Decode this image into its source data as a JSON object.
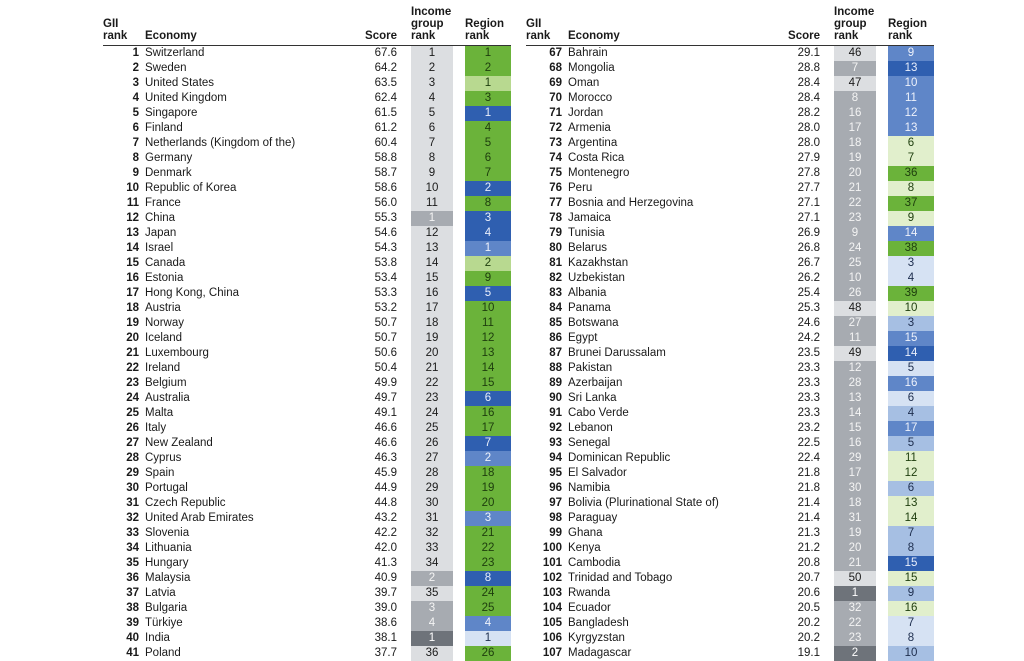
{
  "headers": {
    "gii_rank": [
      "GII",
      "rank"
    ],
    "economy": "Economy",
    "score": "Score",
    "income_group_rank": [
      "Income",
      "group",
      "rank"
    ],
    "region_rank": [
      "Region",
      "rank"
    ]
  },
  "left_rows": [
    {
      "gii": "1",
      "economy": "Switzerland",
      "score": "67.6",
      "income": "1",
      "income_shade": "light",
      "region": "1",
      "region_color": "g"
    },
    {
      "gii": "2",
      "economy": "Sweden",
      "score": "64.2",
      "income": "2",
      "income_shade": "light",
      "region": "2",
      "region_color": "g"
    },
    {
      "gii": "3",
      "economy": "United States",
      "score": "63.5",
      "income": "3",
      "income_shade": "light",
      "region": "1",
      "region_color": "lg"
    },
    {
      "gii": "4",
      "economy": "United Kingdom",
      "score": "62.4",
      "income": "4",
      "income_shade": "light",
      "region": "3",
      "region_color": "g"
    },
    {
      "gii": "5",
      "economy": "Singapore",
      "score": "61.5",
      "income": "5",
      "income_shade": "light",
      "region": "1",
      "region_color": "db"
    },
    {
      "gii": "6",
      "economy": "Finland",
      "score": "61.2",
      "income": "6",
      "income_shade": "light",
      "region": "4",
      "region_color": "g"
    },
    {
      "gii": "7",
      "economy": "Netherlands (Kingdom of the)",
      "score": "60.4",
      "income": "7",
      "income_shade": "light",
      "region": "5",
      "region_color": "g"
    },
    {
      "gii": "8",
      "economy": "Germany",
      "score": "58.8",
      "income": "8",
      "income_shade": "light",
      "region": "6",
      "region_color": "g"
    },
    {
      "gii": "9",
      "economy": "Denmark",
      "score": "58.7",
      "income": "9",
      "income_shade": "light",
      "region": "7",
      "region_color": "g"
    },
    {
      "gii": "10",
      "economy": "Republic of Korea",
      "score": "58.6",
      "income": "10",
      "income_shade": "light",
      "region": "2",
      "region_color": "db"
    },
    {
      "gii": "11",
      "economy": "France",
      "score": "56.0",
      "income": "11",
      "income_shade": "light",
      "region": "8",
      "region_color": "g"
    },
    {
      "gii": "12",
      "economy": "China",
      "score": "55.3",
      "income": "1",
      "income_shade": "mid",
      "region": "3",
      "region_color": "db"
    },
    {
      "gii": "13",
      "economy": "Japan",
      "score": "54.6",
      "income": "12",
      "income_shade": "light",
      "region": "4",
      "region_color": "db"
    },
    {
      "gii": "14",
      "economy": "Israel",
      "score": "54.3",
      "income": "13",
      "income_shade": "light",
      "region": "1",
      "region_color": "mb"
    },
    {
      "gii": "15",
      "economy": "Canada",
      "score": "53.8",
      "income": "14",
      "income_shade": "light",
      "region": "2",
      "region_color": "lg"
    },
    {
      "gii": "16",
      "economy": "Estonia",
      "score": "53.4",
      "income": "15",
      "income_shade": "light",
      "region": "9",
      "region_color": "g"
    },
    {
      "gii": "17",
      "economy": "Hong Kong, China",
      "score": "53.3",
      "income": "16",
      "income_shade": "light",
      "region": "5",
      "region_color": "db"
    },
    {
      "gii": "18",
      "economy": "Austria",
      "score": "53.2",
      "income": "17",
      "income_shade": "light",
      "region": "10",
      "region_color": "g"
    },
    {
      "gii": "19",
      "economy": "Norway",
      "score": "50.7",
      "income": "18",
      "income_shade": "light",
      "region": "11",
      "region_color": "g"
    },
    {
      "gii": "20",
      "economy": "Iceland",
      "score": "50.7",
      "income": "19",
      "income_shade": "light",
      "region": "12",
      "region_color": "g"
    },
    {
      "gii": "21",
      "economy": "Luxembourg",
      "score": "50.6",
      "income": "20",
      "income_shade": "light",
      "region": "13",
      "region_color": "g"
    },
    {
      "gii": "22",
      "economy": "Ireland",
      "score": "50.4",
      "income": "21",
      "income_shade": "light",
      "region": "14",
      "region_color": "g"
    },
    {
      "gii": "23",
      "economy": "Belgium",
      "score": "49.9",
      "income": "22",
      "income_shade": "light",
      "region": "15",
      "region_color": "g"
    },
    {
      "gii": "24",
      "economy": "Australia",
      "score": "49.7",
      "income": "23",
      "income_shade": "light",
      "region": "6",
      "region_color": "db"
    },
    {
      "gii": "25",
      "economy": "Malta",
      "score": "49.1",
      "income": "24",
      "income_shade": "light",
      "region": "16",
      "region_color": "g"
    },
    {
      "gii": "26",
      "economy": "Italy",
      "score": "46.6",
      "income": "25",
      "income_shade": "light",
      "region": "17",
      "region_color": "g"
    },
    {
      "gii": "27",
      "economy": "New Zealand",
      "score": "46.6",
      "income": "26",
      "income_shade": "light",
      "region": "7",
      "region_color": "db"
    },
    {
      "gii": "28",
      "economy": "Cyprus",
      "score": "46.3",
      "income": "27",
      "income_shade": "light",
      "region": "2",
      "region_color": "mb"
    },
    {
      "gii": "29",
      "economy": "Spain",
      "score": "45.9",
      "income": "28",
      "income_shade": "light",
      "region": "18",
      "region_color": "g"
    },
    {
      "gii": "30",
      "economy": "Portugal",
      "score": "44.9",
      "income": "29",
      "income_shade": "light",
      "region": "19",
      "region_color": "g"
    },
    {
      "gii": "31",
      "economy": "Czech Republic",
      "score": "44.8",
      "income": "30",
      "income_shade": "light",
      "region": "20",
      "region_color": "g"
    },
    {
      "gii": "32",
      "economy": "United Arab Emirates",
      "score": "43.2",
      "income": "31",
      "income_shade": "light",
      "region": "3",
      "region_color": "mb"
    },
    {
      "gii": "33",
      "economy": "Slovenia",
      "score": "42.2",
      "income": "32",
      "income_shade": "light",
      "region": "21",
      "region_color": "g"
    },
    {
      "gii": "34",
      "economy": "Lithuania",
      "score": "42.0",
      "income": "33",
      "income_shade": "light",
      "region": "22",
      "region_color": "g"
    },
    {
      "gii": "35",
      "economy": "Hungary",
      "score": "41.3",
      "income": "34",
      "income_shade": "light",
      "region": "23",
      "region_color": "g"
    },
    {
      "gii": "36",
      "economy": "Malaysia",
      "score": "40.9",
      "income": "2",
      "income_shade": "mid",
      "region": "8",
      "region_color": "db"
    },
    {
      "gii": "37",
      "economy": "Latvia",
      "score": "39.7",
      "income": "35",
      "income_shade": "light",
      "region": "24",
      "region_color": "g"
    },
    {
      "gii": "38",
      "economy": "Bulgaria",
      "score": "39.0",
      "income": "3",
      "income_shade": "mid",
      "region": "25",
      "region_color": "g"
    },
    {
      "gii": "39",
      "economy": "Türkiye",
      "score": "38.6",
      "income": "4",
      "income_shade": "mid",
      "region": "4",
      "region_color": "mb"
    },
    {
      "gii": "40",
      "economy": "India",
      "score": "38.1",
      "income": "1",
      "income_shade": "dark",
      "region": "1",
      "region_color": "pb"
    },
    {
      "gii": "41",
      "economy": "Poland",
      "score": "37.7",
      "income": "36",
      "income_shade": "light",
      "region": "26",
      "region_color": "g"
    }
  ],
  "right_rows": [
    {
      "gii": "67",
      "economy": "Bahrain",
      "score": "29.1",
      "income": "46",
      "income_shade": "light",
      "region": "9",
      "region_color": "mb"
    },
    {
      "gii": "68",
      "economy": "Mongolia",
      "score": "28.8",
      "income": "7",
      "income_shade": "mid",
      "region": "13",
      "region_color": "db"
    },
    {
      "gii": "69",
      "economy": "Oman",
      "score": "28.4",
      "income": "47",
      "income_shade": "light",
      "region": "10",
      "region_color": "mb"
    },
    {
      "gii": "70",
      "economy": "Morocco",
      "score": "28.4",
      "income": "8",
      "income_shade": "mid",
      "region": "11",
      "region_color": "mb"
    },
    {
      "gii": "71",
      "economy": "Jordan",
      "score": "28.2",
      "income": "16",
      "income_shade": "mid",
      "region": "12",
      "region_color": "mb"
    },
    {
      "gii": "72",
      "economy": "Armenia",
      "score": "28.0",
      "income": "17",
      "income_shade": "mid",
      "region": "13",
      "region_color": "mb"
    },
    {
      "gii": "73",
      "economy": "Argentina",
      "score": "28.0",
      "income": "18",
      "income_shade": "mid",
      "region": "6",
      "region_color": "pg"
    },
    {
      "gii": "74",
      "economy": "Costa Rica",
      "score": "27.9",
      "income": "19",
      "income_shade": "mid",
      "region": "7",
      "region_color": "pg"
    },
    {
      "gii": "75",
      "economy": "Montenegro",
      "score": "27.8",
      "income": "20",
      "income_shade": "mid",
      "region": "36",
      "region_color": "g"
    },
    {
      "gii": "76",
      "economy": "Peru",
      "score": "27.7",
      "income": "21",
      "income_shade": "mid",
      "region": "8",
      "region_color": "pg"
    },
    {
      "gii": "77",
      "economy": "Bosnia and Herzegovina",
      "score": "27.1",
      "income": "22",
      "income_shade": "mid",
      "region": "37",
      "region_color": "g"
    },
    {
      "gii": "78",
      "economy": "Jamaica",
      "score": "27.1",
      "income": "23",
      "income_shade": "mid",
      "region": "9",
      "region_color": "pg"
    },
    {
      "gii": "79",
      "economy": "Tunisia",
      "score": "26.9",
      "income": "9",
      "income_shade": "mid",
      "region": "14",
      "region_color": "mb"
    },
    {
      "gii": "80",
      "economy": "Belarus",
      "score": "26.8",
      "income": "24",
      "income_shade": "mid",
      "region": "38",
      "region_color": "g"
    },
    {
      "gii": "81",
      "economy": "Kazakhstan",
      "score": "26.7",
      "income": "25",
      "income_shade": "mid",
      "region": "3",
      "region_color": "pb"
    },
    {
      "gii": "82",
      "economy": "Uzbekistan",
      "score": "26.2",
      "income": "10",
      "income_shade": "mid",
      "region": "4",
      "region_color": "pb"
    },
    {
      "gii": "83",
      "economy": "Albania",
      "score": "25.4",
      "income": "26",
      "income_shade": "mid",
      "region": "39",
      "region_color": "g"
    },
    {
      "gii": "84",
      "economy": "Panama",
      "score": "25.3",
      "income": "48",
      "income_shade": "light",
      "region": "10",
      "region_color": "pg"
    },
    {
      "gii": "85",
      "economy": "Botswana",
      "score": "24.6",
      "income": "27",
      "income_shade": "mid",
      "region": "3",
      "region_color": "lb"
    },
    {
      "gii": "86",
      "economy": "Egypt",
      "score": "24.2",
      "income": "11",
      "income_shade": "mid",
      "region": "15",
      "region_color": "mb"
    },
    {
      "gii": "87",
      "economy": "Brunei Darussalam",
      "score": "23.5",
      "income": "49",
      "income_shade": "light",
      "region": "14",
      "region_color": "db"
    },
    {
      "gii": "88",
      "economy": "Pakistan",
      "score": "23.3",
      "income": "12",
      "income_shade": "mid",
      "region": "5",
      "region_color": "pb"
    },
    {
      "gii": "89",
      "economy": "Azerbaijan",
      "score": "23.3",
      "income": "28",
      "income_shade": "mid",
      "region": "16",
      "region_color": "mb"
    },
    {
      "gii": "90",
      "economy": "Sri Lanka",
      "score": "23.3",
      "income": "13",
      "income_shade": "mid",
      "region": "6",
      "region_color": "pb"
    },
    {
      "gii": "91",
      "economy": "Cabo Verde",
      "score": "23.3",
      "income": "14",
      "income_shade": "mid",
      "region": "4",
      "region_color": "lb"
    },
    {
      "gii": "92",
      "economy": "Lebanon",
      "score": "23.2",
      "income": "15",
      "income_shade": "mid",
      "region": "17",
      "region_color": "mb"
    },
    {
      "gii": "93",
      "economy": "Senegal",
      "score": "22.5",
      "income": "16",
      "income_shade": "mid",
      "region": "5",
      "region_color": "lb"
    },
    {
      "gii": "94",
      "economy": "Dominican Republic",
      "score": "22.4",
      "income": "29",
      "income_shade": "mid",
      "region": "11",
      "region_color": "pg"
    },
    {
      "gii": "95",
      "economy": "El Salvador",
      "score": "21.8",
      "income": "17",
      "income_shade": "mid",
      "region": "12",
      "region_color": "pg"
    },
    {
      "gii": "96",
      "economy": "Namibia",
      "score": "21.8",
      "income": "30",
      "income_shade": "mid",
      "region": "6",
      "region_color": "lb"
    },
    {
      "gii": "97",
      "economy": "Bolivia (Plurinational State of)",
      "score": "21.4",
      "income": "18",
      "income_shade": "mid",
      "region": "13",
      "region_color": "pg"
    },
    {
      "gii": "98",
      "economy": "Paraguay",
      "score": "21.4",
      "income": "31",
      "income_shade": "mid",
      "region": "14",
      "region_color": "pg"
    },
    {
      "gii": "99",
      "economy": "Ghana",
      "score": "21.3",
      "income": "19",
      "income_shade": "mid",
      "region": "7",
      "region_color": "lb"
    },
    {
      "gii": "100",
      "economy": "Kenya",
      "score": "21.2",
      "income": "20",
      "income_shade": "mid",
      "region": "8",
      "region_color": "lb"
    },
    {
      "gii": "101",
      "economy": "Cambodia",
      "score": "20.8",
      "income": "21",
      "income_shade": "mid",
      "region": "15",
      "region_color": "db"
    },
    {
      "gii": "102",
      "economy": "Trinidad and Tobago",
      "score": "20.7",
      "income": "50",
      "income_shade": "light",
      "region": "15",
      "region_color": "pg"
    },
    {
      "gii": "103",
      "economy": "Rwanda",
      "score": "20.6",
      "income": "1",
      "income_shade": "dark",
      "region": "9",
      "region_color": "lb"
    },
    {
      "gii": "104",
      "economy": "Ecuador",
      "score": "20.5",
      "income": "32",
      "income_shade": "mid",
      "region": "16",
      "region_color": "pg"
    },
    {
      "gii": "105",
      "economy": "Bangladesh",
      "score": "20.2",
      "income": "22",
      "income_shade": "mid",
      "region": "7",
      "region_color": "pb"
    },
    {
      "gii": "106",
      "economy": "Kyrgyzstan",
      "score": "20.2",
      "income": "23",
      "income_shade": "mid",
      "region": "8",
      "region_color": "pb"
    },
    {
      "gii": "107",
      "economy": "Madagascar",
      "score": "19.1",
      "income": "2",
      "income_shade": "dark",
      "region": "10",
      "region_color": "lb"
    }
  ],
  "colors": {
    "income_light": "#dcdee1",
    "income_mid": "#a7abb1",
    "income_dark": "#6e737a",
    "region_green": "#6bb33a",
    "region_light_green": "#b8d990",
    "region_pale_green": "#e1efcc",
    "region_dark_blue": "#2f5fb0",
    "region_mid_blue": "#5f86c8",
    "region_light_blue": "#a6bfe3",
    "region_pale_blue": "#d6e2f3"
  }
}
